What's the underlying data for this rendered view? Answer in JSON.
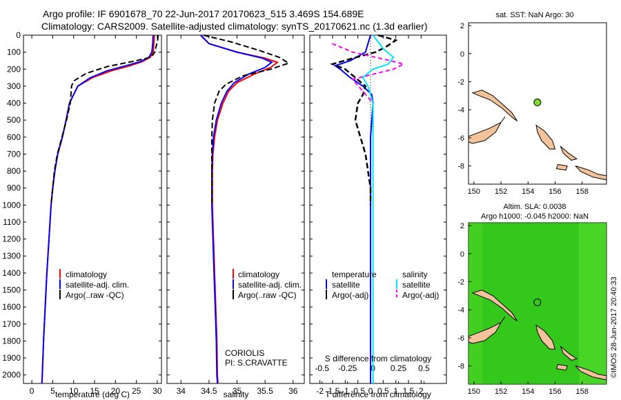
{
  "header": {
    "line1": "Argo profile: IF 6901678_70 22-Jun-2017 20170623_515 3.469S 154.689E",
    "line2": "Climatology: CARS2009. Satellite-adjusted climatology: synTS_20170621.nc (1.3d earlier)"
  },
  "colors": {
    "climatology": "#ff0000",
    "satellite": "#0000ff",
    "argo": "#000000",
    "satellite_sal_diff": "#00e5ff",
    "argo_sal_diff": "#ff00ff",
    "land": "#f4c39a",
    "sla_field": "#3cd01e"
  },
  "chart_data": [
    {
      "type": "line",
      "panel": "temperature",
      "xlabel": "temperature (deg C)",
      "xlim": [
        -2,
        31
      ],
      "xticks": [
        0,
        5,
        10,
        15,
        20,
        25,
        30
      ],
      "ylim": [
        0,
        2050
      ],
      "yticks": [
        0,
        100,
        200,
        300,
        400,
        500,
        600,
        700,
        800,
        900,
        1000,
        1100,
        1200,
        1300,
        1400,
        1500,
        1600,
        1700,
        1800,
        1900,
        2000
      ],
      "legend": [
        "climatology",
        "satellite-adj. clim.",
        "Argo(..raw -QC)"
      ],
      "series": [
        {
          "name": "climatology",
          "points": [
            [
              29.3,
              0
            ],
            [
              29.2,
              50
            ],
            [
              29.0,
              100
            ],
            [
              28.3,
              130
            ],
            [
              26.5,
              155
            ],
            [
              23.5,
              180
            ],
            [
              19,
              210
            ],
            [
              14.5,
              250
            ],
            [
              11,
              300
            ],
            [
              10,
              350
            ],
            [
              9,
              400
            ],
            [
              8.2,
              500
            ],
            [
              7.3,
              600
            ],
            [
              6.2,
              700
            ],
            [
              5.5,
              800
            ],
            [
              5.0,
              900
            ],
            [
              4.6,
              1000
            ],
            [
              4.1,
              1200
            ],
            [
              3.6,
              1400
            ],
            [
              3.2,
              1600
            ],
            [
              2.8,
              1800
            ],
            [
              2.5,
              2000
            ],
            [
              2.4,
              2050
            ]
          ]
        },
        {
          "name": "satellite-adj. clim.",
          "points": [
            [
              29.0,
              0
            ],
            [
              28.9,
              50
            ],
            [
              28.7,
              100
            ],
            [
              28.0,
              130
            ],
            [
              26,
              155
            ],
            [
              22.5,
              180
            ],
            [
              18,
              210
            ],
            [
              14,
              250
            ],
            [
              11,
              300
            ],
            [
              10,
              350
            ],
            [
              9,
              400
            ],
            [
              8.2,
              500
            ],
            [
              7.3,
              600
            ],
            [
              6.2,
              700
            ],
            [
              5.5,
              800
            ],
            [
              5.0,
              900
            ],
            [
              4.6,
              1000
            ],
            [
              4.1,
              1200
            ],
            [
              3.6,
              1400
            ],
            [
              3.2,
              1600
            ],
            [
              2.8,
              1800
            ],
            [
              2.5,
              2000
            ],
            [
              2.4,
              2050
            ]
          ]
        },
        {
          "name": "Argo(..raw -QC)",
          "points": [
            [
              30.2,
              0
            ],
            [
              30.1,
              30
            ],
            [
              29.8,
              60
            ],
            [
              29.4,
              100
            ],
            [
              28.5,
              130
            ],
            [
              24,
              155
            ],
            [
              18,
              185
            ],
            [
              13,
              225
            ],
            [
              10,
              270
            ],
            [
              9.5,
              300
            ],
            [
              9.2,
              400
            ],
            [
              8.3,
              500
            ],
            [
              7.2,
              600
            ],
            [
              6.1,
              700
            ],
            [
              5.4,
              800
            ],
            [
              5.0,
              900
            ],
            [
              4.6,
              1000
            ]
          ]
        }
      ]
    },
    {
      "type": "line",
      "panel": "salinity",
      "xlabel": "salinity",
      "xlim": [
        33.75,
        36.2
      ],
      "xticks": [
        34,
        34.5,
        35,
        35.5,
        36
      ],
      "ylim": [
        0,
        2050
      ],
      "legend": [
        "climatology",
        "satellite-adj. clim.",
        "Argo(..raw -QC)"
      ],
      "annotation": [
        "CORIOLIS",
        "PI: S.CRAVATTE"
      ],
      "series": [
        {
          "name": "climatology",
          "points": [
            [
              34.35,
              0
            ],
            [
              34.5,
              50
            ],
            [
              35.0,
              100
            ],
            [
              35.5,
              135
            ],
            [
              35.72,
              160
            ],
            [
              35.6,
              190
            ],
            [
              35.3,
              230
            ],
            [
              35.0,
              280
            ],
            [
              34.85,
              330
            ],
            [
              34.75,
              400
            ],
            [
              34.65,
              500
            ],
            [
              34.6,
              600
            ],
            [
              34.57,
              700
            ],
            [
              34.56,
              800
            ],
            [
              34.56,
              1000
            ],
            [
              34.58,
              1200
            ],
            [
              34.6,
              1400
            ],
            [
              34.62,
              1600
            ],
            [
              34.64,
              1800
            ],
            [
              34.65,
              2000
            ],
            [
              34.66,
              2050
            ]
          ]
        },
        {
          "name": "satellite-adj. clim.",
          "points": [
            [
              34.35,
              0
            ],
            [
              34.5,
              50
            ],
            [
              35.0,
              100
            ],
            [
              35.45,
              135
            ],
            [
              35.62,
              160
            ],
            [
              35.5,
              190
            ],
            [
              35.2,
              230
            ],
            [
              34.95,
              280
            ],
            [
              34.82,
              330
            ],
            [
              34.72,
              400
            ],
            [
              34.63,
              500
            ],
            [
              34.58,
              600
            ],
            [
              34.56,
              700
            ],
            [
              34.55,
              800
            ],
            [
              34.55,
              1000
            ],
            [
              34.57,
              1200
            ],
            [
              34.59,
              1400
            ],
            [
              34.61,
              1600
            ],
            [
              34.63,
              1800
            ],
            [
              34.64,
              2000
            ],
            [
              34.65,
              2050
            ]
          ]
        },
        {
          "name": "Argo(..raw -QC)",
          "points": [
            [
              34.4,
              0
            ],
            [
              34.9,
              40
            ],
            [
              35.4,
              90
            ],
            [
              35.75,
              130
            ],
            [
              35.92,
              165
            ],
            [
              35.6,
              200
            ],
            [
              35.1,
              240
            ],
            [
              34.8,
              290
            ],
            [
              34.68,
              330
            ],
            [
              34.6,
              400
            ],
            [
              34.56,
              500
            ],
            [
              34.55,
              600
            ],
            [
              34.55,
              700
            ],
            [
              34.55,
              800
            ],
            [
              34.55,
              900
            ],
            [
              34.55,
              1000
            ]
          ]
        }
      ]
    },
    {
      "type": "line",
      "panel": "difference",
      "xlabel": "T difference from climatology",
      "x2label": "S difference from climatology",
      "xlim": [
        -2.4,
        3.0
      ],
      "xticks": [
        -2,
        -1.5,
        -1,
        -0.5,
        0,
        0.5,
        1,
        1.5,
        2
      ],
      "xtick_labels": [
        "-2",
        "-1.5",
        "-1",
        "-0.5",
        "0",
        "0.5",
        "1",
        "1.5",
        "2"
      ],
      "x2ticks": [
        -0.5,
        -0.25,
        0,
        0.25,
        0.5
      ],
      "x2tick_labels": [
        "-0.5",
        "-0.25",
        "0",
        "0.25",
        "0.5"
      ],
      "ylim": [
        0,
        2050
      ],
      "legend_groups": [
        {
          "title": "temperature",
          "items": [
            "satellite",
            "Argo(-adj)"
          ]
        },
        {
          "title": "salinity",
          "items": [
            "satellite",
            "Argo(-adj)"
          ]
        }
      ],
      "series": [
        {
          "name": "satellite",
          "group": "temperature",
          "points": [
            [
              0,
              0
            ],
            [
              -0.1,
              50
            ],
            [
              -0.2,
              100
            ],
            [
              -0.8,
              150
            ],
            [
              -1.4,
              180
            ],
            [
              -1.2,
              200
            ],
            [
              -0.8,
              250
            ],
            [
              -0.3,
              300
            ],
            [
              0.05,
              350
            ],
            [
              0.1,
              400
            ],
            [
              0.05,
              500
            ],
            [
              0,
              600
            ],
            [
              0,
              800
            ],
            [
              0,
              1000
            ],
            [
              0,
              2050
            ]
          ]
        },
        {
          "name": "Argo(-adj)",
          "group": "temperature",
          "points": [
            [
              0.3,
              0
            ],
            [
              1.0,
              30
            ],
            [
              0.6,
              70
            ],
            [
              0.2,
              100
            ],
            [
              -0.8,
              140
            ],
            [
              -1.5,
              170
            ],
            [
              -1.0,
              200
            ],
            [
              -0.6,
              250
            ],
            [
              -0.2,
              300
            ],
            [
              -0.3,
              350
            ],
            [
              -0.5,
              400
            ],
            [
              -0.6,
              500
            ],
            [
              -0.4,
              600
            ],
            [
              -0.2,
              700
            ],
            [
              -0.1,
              800
            ],
            [
              0,
              900
            ],
            [
              0,
              1000
            ]
          ]
        },
        {
          "name": "satellite",
          "group": "salinity",
          "points": [
            [
              0,
              0
            ],
            [
              0.1,
              80
            ],
            [
              0.2,
              130
            ],
            [
              0.15,
              170
            ],
            [
              0.0,
              200
            ],
            [
              -0.1,
              250
            ],
            [
              -0.05,
              300
            ],
            [
              0,
              400
            ],
            [
              0,
              600
            ],
            [
              0,
              1000
            ],
            [
              0,
              2050
            ]
          ]
        },
        {
          "name": "Argo(-adj)",
          "group": "salinity",
          "points": [
            [
              -0.4,
              50
            ],
            [
              -0.2,
              100
            ],
            [
              0.1,
              140
            ],
            [
              0.3,
              170
            ],
            [
              0.2,
              200
            ],
            [
              -0.2,
              260
            ],
            [
              -0.1,
              330
            ],
            [
              0,
              400
            ]
          ]
        }
      ]
    },
    {
      "type": "map",
      "panel": "sst",
      "title": "sat. SST: NaN Argo: 30",
      "xlim": [
        149.6,
        159.8
      ],
      "ylim": [
        -9.3,
        2.2
      ],
      "xticks": [
        150,
        152,
        154,
        156,
        158
      ],
      "yticks": [
        2,
        0,
        -2,
        -4,
        -6,
        -8
      ],
      "argo_position": {
        "lon": 154.689,
        "lat": -3.469
      }
    },
    {
      "type": "map",
      "panel": "sla",
      "title_line1": "Altim. SLA: 0.0038",
      "title_line2": "Argo h1000: -0.045 h2000: NaN",
      "xlim": [
        149.6,
        159.8
      ],
      "ylim": [
        -9.3,
        2.2
      ],
      "xticks": [
        150,
        152,
        154,
        156,
        158
      ],
      "yticks": [
        2,
        0,
        -2,
        -4,
        -6,
        -8
      ],
      "argo_position": {
        "lon": 154.689,
        "lat": -3.469
      }
    }
  ],
  "side_stamp": "©IMOS 28-Jun-2017 20:40:33"
}
